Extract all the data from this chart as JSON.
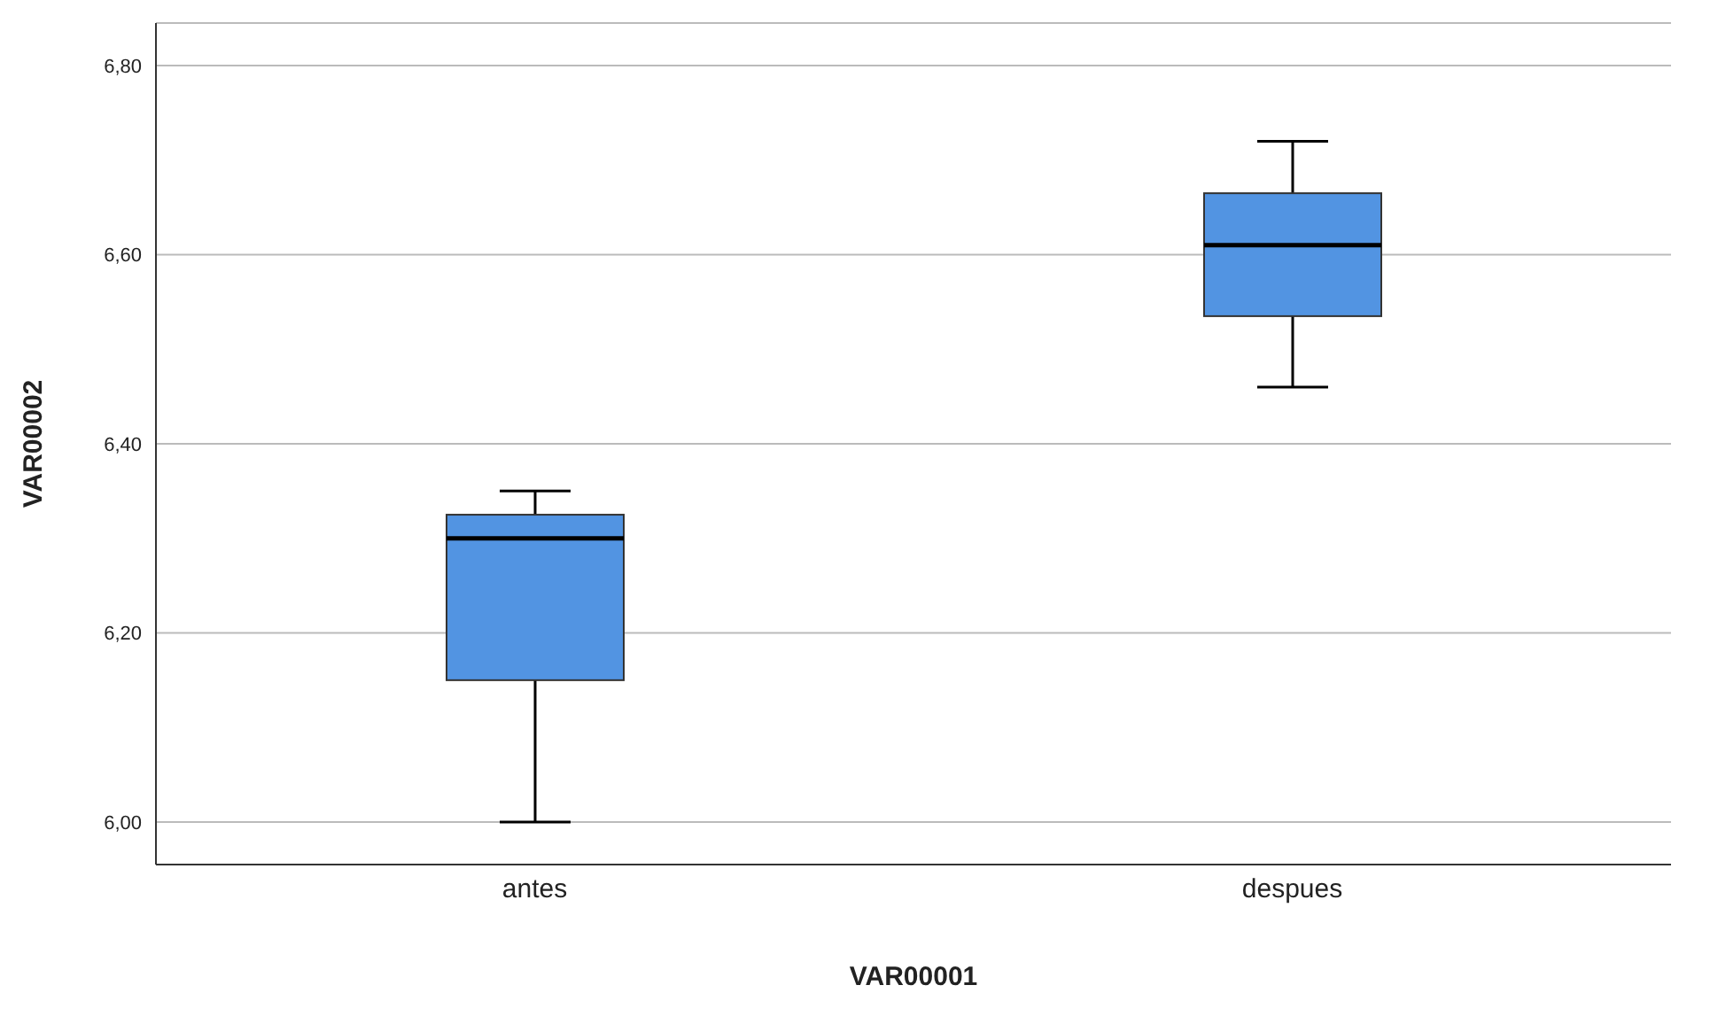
{
  "chart_data": {
    "type": "box",
    "xlabel": "VAR00001",
    "ylabel": "VAR00002",
    "categories": [
      "antes",
      "despues"
    ],
    "color": "#5294e2",
    "boxes": [
      {
        "low": 6.0,
        "q1": 6.15,
        "median": 6.3,
        "q3": 6.325,
        "high": 6.35
      },
      {
        "low": 6.46,
        "q1": 6.535,
        "median": 6.61,
        "q3": 6.665,
        "high": 6.72
      }
    ],
    "ylim": [
      5.955,
      6.845
    ],
    "yticks": [
      {
        "value": 6.0,
        "label": "6,00"
      },
      {
        "value": 6.2,
        "label": "6,20"
      },
      {
        "value": 6.4,
        "label": "6,40"
      },
      {
        "value": 6.6,
        "label": "6,60"
      },
      {
        "value": 6.8,
        "label": "6,80"
      }
    ],
    "grid": "y"
  }
}
